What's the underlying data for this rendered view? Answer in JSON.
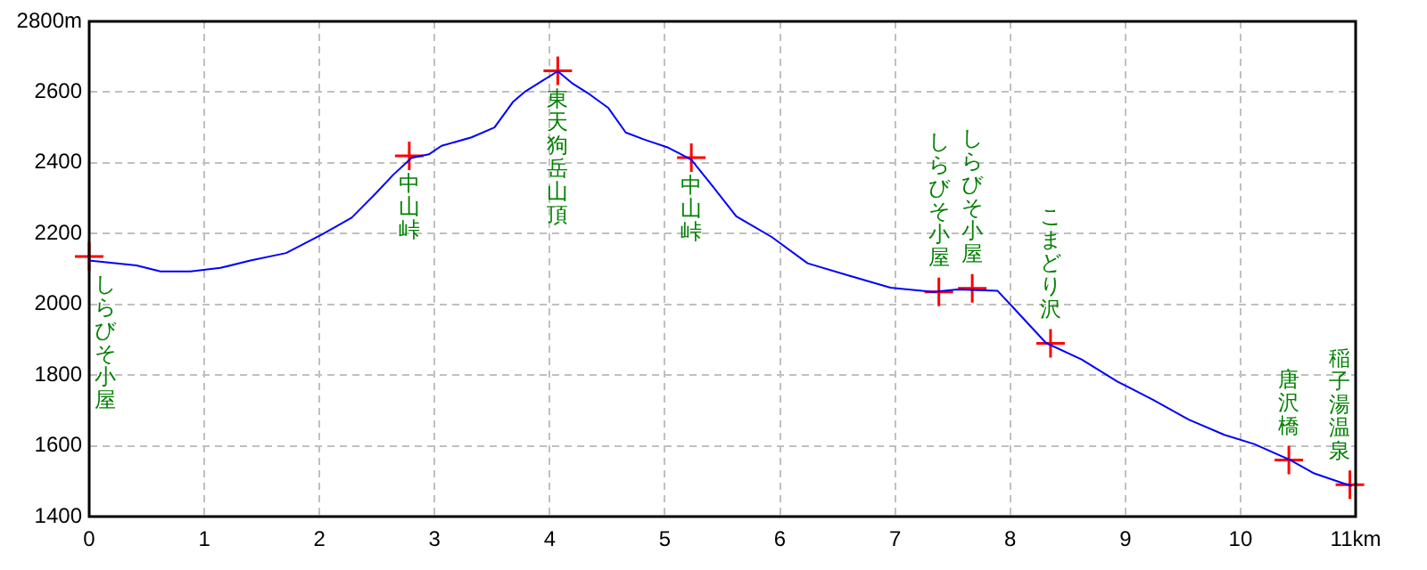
{
  "chart_data": {
    "type": "line",
    "xlim": [
      0,
      11
    ],
    "ylim": [
      1400,
      2800
    ],
    "xticks": [
      0,
      1,
      2,
      3,
      4,
      5,
      6,
      7,
      8,
      9,
      10,
      {
        "value": 11,
        "label": "11km"
      }
    ],
    "yticks": [
      1400,
      1600,
      1800,
      2000,
      2200,
      2400,
      2600,
      {
        "value": 2800,
        "label": "2800m"
      }
    ],
    "grid": true,
    "legend": false,
    "line_style": "solid",
    "series": [
      {
        "type": "line",
        "color": "#0000ff",
        "marker": "none",
        "x": [
          0,
          0.41,
          0.62,
          0.88,
          1.14,
          1.4,
          1.71,
          2.02,
          2.28,
          2.49,
          2.64,
          2.8,
          2.95,
          3.06,
          3.32,
          3.52,
          3.68,
          3.78,
          3.94,
          4.07,
          4.2,
          4.35,
          4.51,
          4.66,
          4.82,
          5.03,
          5.23,
          5.42,
          5.62,
          5.93,
          6.24,
          6.6,
          6.96,
          7.33,
          7.54,
          7.89,
          8,
          8.31,
          8.62,
          8.93,
          9.24,
          9.55,
          9.86,
          10.12,
          10.43,
          10.64,
          10.9,
          10.97
        ],
        "values": [
          2124,
          2110,
          2093,
          2093,
          2103,
          2124,
          2145,
          2197,
          2245,
          2314,
          2366,
          2414,
          2424,
          2448,
          2472,
          2500,
          2572,
          2600,
          2633,
          2659,
          2624,
          2593,
          2555,
          2486,
          2466,
          2443,
          2409,
          2332,
          2249,
          2190,
          2116,
          2081,
          2047,
          2035,
          2042,
          2038,
          2000,
          1891,
          1844,
          1782,
          1730,
          1674,
          1631,
          1605,
          1560,
          1522,
          1493,
          1487
        ]
      },
      {
        "type": "scatter",
        "color": "#ff0000",
        "marker": "cross",
        "x": [
          0,
          2.78,
          4.07,
          5.23,
          7.38,
          7.67,
          8.35,
          10.42,
          10.95
        ],
        "values": [
          2135,
          2420,
          2660,
          2415,
          2035,
          2045,
          1890,
          1560,
          1490
        ]
      }
    ],
    "annotations": [
      {
        "text": "しらびそ小屋",
        "x": 0,
        "y": 2135
      },
      {
        "text": "中山峠",
        "x": 2.78,
        "y": 2420
      },
      {
        "text": "東天狗岳山頂",
        "x": 4.07,
        "y": 2660
      },
      {
        "text": "中山峠",
        "x": 5.23,
        "y": 2415
      },
      {
        "text": "しらびそ小屋",
        "x": 7.38,
        "y": 2035
      },
      {
        "text": "しらびそ小屋",
        "x": 7.67,
        "y": 2045
      },
      {
        "text": "こまどり沢",
        "x": 8.35,
        "y": 1890
      },
      {
        "text": "唐沢橋",
        "x": 10.42,
        "y": 1560
      },
      {
        "text": "稲子湯温泉",
        "x": 10.95,
        "y": 1490
      }
    ]
  }
}
